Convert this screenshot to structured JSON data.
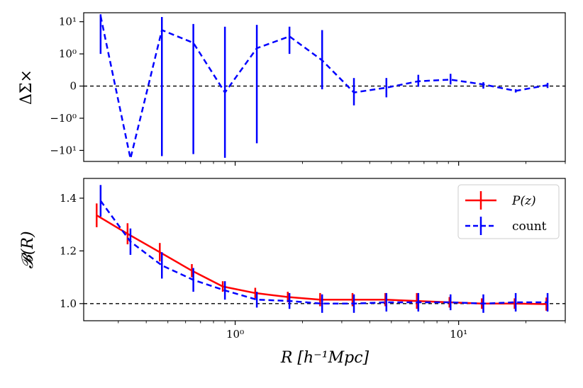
{
  "colors": {
    "pz": "#ff0000",
    "count": "#0000ff",
    "reference": "#000000"
  },
  "chart_data": [
    {
      "type": "line",
      "panel": "top",
      "title": "",
      "ylabel": "ΔΣ×",
      "xscale": "log",
      "yscale": "symlog",
      "xlim": [
        0.21,
        30
      ],
      "reference_line_y": 0,
      "yticks": [
        {
          "value": 10,
          "label": "10¹"
        },
        {
          "value": 1,
          "label": "10⁰"
        },
        {
          "value": 0,
          "label": "0"
        },
        {
          "value": -1,
          "label": "−10⁰"
        },
        {
          "value": -10,
          "label": "−10¹"
        }
      ],
      "series": [
        {
          "name": "count",
          "style": "dashed",
          "x": [
            0.25,
            0.34,
            0.47,
            0.65,
            0.9,
            1.25,
            1.75,
            2.45,
            3.4,
            4.75,
            6.6,
            9.2,
            12.9,
            18.0,
            25.0
          ],
          "y": [
            15,
            -18,
            5.5,
            2.2,
            -0.2,
            1.5,
            3.5,
            0.8,
            -0.2,
            -0.05,
            0.15,
            0.2,
            0.05,
            -0.15,
            0.03
          ],
          "err_low": [
            1.0,
            -18,
            -15,
            -13,
            -17,
            -6,
            1.0,
            -0.1,
            -0.6,
            -0.35,
            -0.02,
            0.05,
            -0.08,
            -0.2,
            -0.06
          ],
          "err_high": [
            17,
            -18,
            14,
            8.5,
            7,
            8,
            7,
            5.5,
            0.25,
            0.25,
            0.35,
            0.38,
            0.12,
            -0.1,
            0.1
          ]
        }
      ]
    },
    {
      "type": "line",
      "panel": "bottom",
      "title": "",
      "xlabel": "R [h⁻¹Mpc]",
      "ylabel": "𝓑(R)",
      "xscale": "log",
      "xlim": [
        0.21,
        30
      ],
      "ylim": [
        0.935,
        1.475
      ],
      "reference_line_y": 1.0,
      "yticks": [
        {
          "value": 1.0,
          "label": "1.0"
        },
        {
          "value": 1.2,
          "label": "1.2"
        },
        {
          "value": 1.4,
          "label": "1.4"
        }
      ],
      "xticks": [
        {
          "value": 1,
          "label": "10⁰"
        },
        {
          "value": 10,
          "label": "10¹"
        }
      ],
      "series": [
        {
          "name": "P(z)",
          "style": "solid",
          "x": [
            0.24,
            0.33,
            0.46,
            0.64,
            0.88,
            1.23,
            1.72,
            2.4,
            3.35,
            4.7,
            6.5,
            9.1,
            12.7,
            17.8,
            24.7
          ],
          "y": [
            1.335,
            1.265,
            1.195,
            1.125,
            1.065,
            1.04,
            1.025,
            1.015,
            1.015,
            1.015,
            1.01,
            1.005,
            1.0,
            1.0,
            0.998
          ],
          "err": [
            0.045,
            0.04,
            0.035,
            0.025,
            0.02,
            0.02,
            0.02,
            0.025,
            0.025,
            0.025,
            0.03,
            0.02,
            0.02,
            0.02,
            0.025
          ]
        },
        {
          "name": "count",
          "style": "dashed",
          "x": [
            0.25,
            0.34,
            0.47,
            0.65,
            0.9,
            1.25,
            1.75,
            2.45,
            3.4,
            4.75,
            6.6,
            9.2,
            12.9,
            18.0,
            25.0
          ],
          "y": [
            1.39,
            1.235,
            1.145,
            1.09,
            1.05,
            1.015,
            1.01,
            1.0,
            1.0,
            1.005,
            1.005,
            1.005,
            1.0,
            1.005,
            1.005
          ],
          "err": [
            0.06,
            0.05,
            0.05,
            0.045,
            0.035,
            0.03,
            0.03,
            0.035,
            0.035,
            0.035,
            0.035,
            0.03,
            0.035,
            0.035,
            0.035
          ]
        }
      ],
      "legend": {
        "placement": "top-right",
        "entries": [
          {
            "label": "P(z)",
            "series": "P(z)"
          },
          {
            "label": "count",
            "series": "count"
          }
        ]
      }
    }
  ]
}
